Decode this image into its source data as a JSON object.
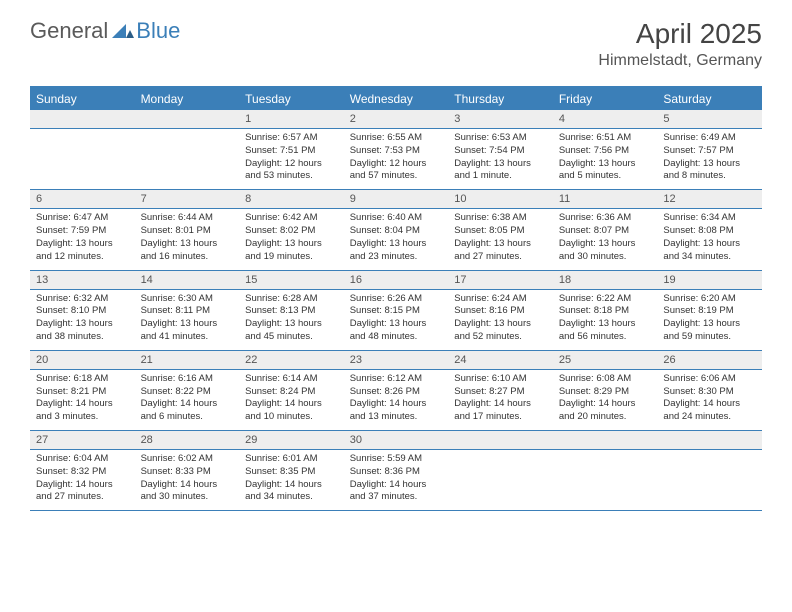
{
  "logo": {
    "text1": "General",
    "text2": "Blue"
  },
  "title": "April 2025",
  "location": "Himmelstadt, Germany",
  "colors": {
    "brand": "#3b7fb8",
    "header_bg": "#3b7fb8",
    "header_text": "#ffffff",
    "daynum_bg": "#eeeeee",
    "border": "#3b7fb8",
    "background": "#ffffff",
    "text": "#333333"
  },
  "day_names": [
    "Sunday",
    "Monday",
    "Tuesday",
    "Wednesday",
    "Thursday",
    "Friday",
    "Saturday"
  ],
  "weeks": [
    [
      null,
      null,
      {
        "n": "1",
        "sr": "Sunrise: 6:57 AM",
        "ss": "Sunset: 7:51 PM",
        "dl": "Daylight: 12 hours and 53 minutes."
      },
      {
        "n": "2",
        "sr": "Sunrise: 6:55 AM",
        "ss": "Sunset: 7:53 PM",
        "dl": "Daylight: 12 hours and 57 minutes."
      },
      {
        "n": "3",
        "sr": "Sunrise: 6:53 AM",
        "ss": "Sunset: 7:54 PM",
        "dl": "Daylight: 13 hours and 1 minute."
      },
      {
        "n": "4",
        "sr": "Sunrise: 6:51 AM",
        "ss": "Sunset: 7:56 PM",
        "dl": "Daylight: 13 hours and 5 minutes."
      },
      {
        "n": "5",
        "sr": "Sunrise: 6:49 AM",
        "ss": "Sunset: 7:57 PM",
        "dl": "Daylight: 13 hours and 8 minutes."
      }
    ],
    [
      {
        "n": "6",
        "sr": "Sunrise: 6:47 AM",
        "ss": "Sunset: 7:59 PM",
        "dl": "Daylight: 13 hours and 12 minutes."
      },
      {
        "n": "7",
        "sr": "Sunrise: 6:44 AM",
        "ss": "Sunset: 8:01 PM",
        "dl": "Daylight: 13 hours and 16 minutes."
      },
      {
        "n": "8",
        "sr": "Sunrise: 6:42 AM",
        "ss": "Sunset: 8:02 PM",
        "dl": "Daylight: 13 hours and 19 minutes."
      },
      {
        "n": "9",
        "sr": "Sunrise: 6:40 AM",
        "ss": "Sunset: 8:04 PM",
        "dl": "Daylight: 13 hours and 23 minutes."
      },
      {
        "n": "10",
        "sr": "Sunrise: 6:38 AM",
        "ss": "Sunset: 8:05 PM",
        "dl": "Daylight: 13 hours and 27 minutes."
      },
      {
        "n": "11",
        "sr": "Sunrise: 6:36 AM",
        "ss": "Sunset: 8:07 PM",
        "dl": "Daylight: 13 hours and 30 minutes."
      },
      {
        "n": "12",
        "sr": "Sunrise: 6:34 AM",
        "ss": "Sunset: 8:08 PM",
        "dl": "Daylight: 13 hours and 34 minutes."
      }
    ],
    [
      {
        "n": "13",
        "sr": "Sunrise: 6:32 AM",
        "ss": "Sunset: 8:10 PM",
        "dl": "Daylight: 13 hours and 38 minutes."
      },
      {
        "n": "14",
        "sr": "Sunrise: 6:30 AM",
        "ss": "Sunset: 8:11 PM",
        "dl": "Daylight: 13 hours and 41 minutes."
      },
      {
        "n": "15",
        "sr": "Sunrise: 6:28 AM",
        "ss": "Sunset: 8:13 PM",
        "dl": "Daylight: 13 hours and 45 minutes."
      },
      {
        "n": "16",
        "sr": "Sunrise: 6:26 AM",
        "ss": "Sunset: 8:15 PM",
        "dl": "Daylight: 13 hours and 48 minutes."
      },
      {
        "n": "17",
        "sr": "Sunrise: 6:24 AM",
        "ss": "Sunset: 8:16 PM",
        "dl": "Daylight: 13 hours and 52 minutes."
      },
      {
        "n": "18",
        "sr": "Sunrise: 6:22 AM",
        "ss": "Sunset: 8:18 PM",
        "dl": "Daylight: 13 hours and 56 minutes."
      },
      {
        "n": "19",
        "sr": "Sunrise: 6:20 AM",
        "ss": "Sunset: 8:19 PM",
        "dl": "Daylight: 13 hours and 59 minutes."
      }
    ],
    [
      {
        "n": "20",
        "sr": "Sunrise: 6:18 AM",
        "ss": "Sunset: 8:21 PM",
        "dl": "Daylight: 14 hours and 3 minutes."
      },
      {
        "n": "21",
        "sr": "Sunrise: 6:16 AM",
        "ss": "Sunset: 8:22 PM",
        "dl": "Daylight: 14 hours and 6 minutes."
      },
      {
        "n": "22",
        "sr": "Sunrise: 6:14 AM",
        "ss": "Sunset: 8:24 PM",
        "dl": "Daylight: 14 hours and 10 minutes."
      },
      {
        "n": "23",
        "sr": "Sunrise: 6:12 AM",
        "ss": "Sunset: 8:26 PM",
        "dl": "Daylight: 14 hours and 13 minutes."
      },
      {
        "n": "24",
        "sr": "Sunrise: 6:10 AM",
        "ss": "Sunset: 8:27 PM",
        "dl": "Daylight: 14 hours and 17 minutes."
      },
      {
        "n": "25",
        "sr": "Sunrise: 6:08 AM",
        "ss": "Sunset: 8:29 PM",
        "dl": "Daylight: 14 hours and 20 minutes."
      },
      {
        "n": "26",
        "sr": "Sunrise: 6:06 AM",
        "ss": "Sunset: 8:30 PM",
        "dl": "Daylight: 14 hours and 24 minutes."
      }
    ],
    [
      {
        "n": "27",
        "sr": "Sunrise: 6:04 AM",
        "ss": "Sunset: 8:32 PM",
        "dl": "Daylight: 14 hours and 27 minutes."
      },
      {
        "n": "28",
        "sr": "Sunrise: 6:02 AM",
        "ss": "Sunset: 8:33 PM",
        "dl": "Daylight: 14 hours and 30 minutes."
      },
      {
        "n": "29",
        "sr": "Sunrise: 6:01 AM",
        "ss": "Sunset: 8:35 PM",
        "dl": "Daylight: 14 hours and 34 minutes."
      },
      {
        "n": "30",
        "sr": "Sunrise: 5:59 AM",
        "ss": "Sunset: 8:36 PM",
        "dl": "Daylight: 14 hours and 37 minutes."
      },
      null,
      null,
      null
    ]
  ]
}
